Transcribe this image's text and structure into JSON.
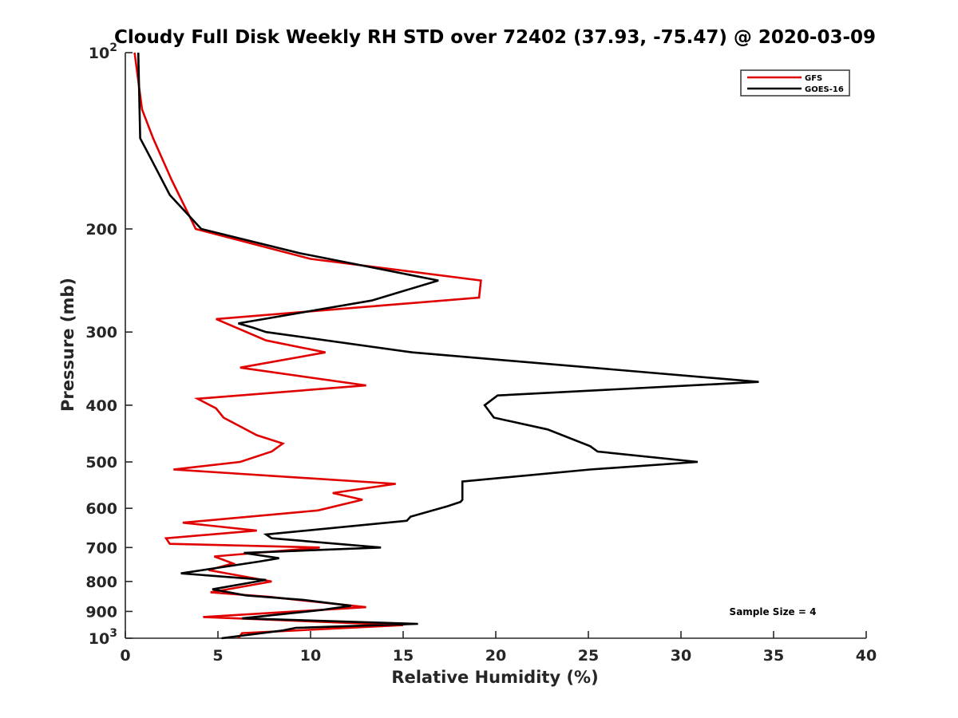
{
  "chart_data": {
    "type": "line",
    "title": "Cloudy Full Disk Weekly RH STD over 72402 (37.93, -75.47) @ 2020-03-09",
    "xlabel": "Relative Humidity (%)",
    "ylabel": "Pressure (mb)",
    "xlim": [
      0,
      40
    ],
    "ylim": [
      100,
      1000
    ],
    "y_scale": "log",
    "y_reversed": true,
    "grid": false,
    "legend_position": "top-right",
    "x_ticks": [
      "0",
      "5",
      "10",
      "15",
      "20",
      "25",
      "30",
      "35",
      "40"
    ],
    "y_ticks": [
      {
        "value": 100,
        "base": "10",
        "exp": "2"
      },
      {
        "value": 200,
        "label": "200"
      },
      {
        "value": 300,
        "label": "300"
      },
      {
        "value": 400,
        "label": "400"
      },
      {
        "value": 500,
        "label": "500"
      },
      {
        "value": 600,
        "label": "600"
      },
      {
        "value": 700,
        "label": "700"
      },
      {
        "value": 800,
        "label": "800"
      },
      {
        "value": 900,
        "label": "900"
      },
      {
        "value": 1000,
        "base": "10",
        "exp": "3"
      }
    ],
    "annotation": "Sample Size = 4",
    "series": [
      {
        "name": "GFS",
        "color": "#e00000",
        "points": [
          [
            0.5,
            100
          ],
          [
            0.9,
            125
          ],
          [
            1.5,
            140
          ],
          [
            2.5,
            165
          ],
          [
            3.8,
            200
          ],
          [
            10.0,
            225
          ],
          [
            19.2,
            245
          ],
          [
            19.1,
            262
          ],
          [
            4.9,
            285
          ],
          [
            7.6,
            310
          ],
          [
            10.8,
            325
          ],
          [
            6.2,
            345
          ],
          [
            13.0,
            370
          ],
          [
            3.9,
            390
          ],
          [
            4.9,
            405
          ],
          [
            5.3,
            420
          ],
          [
            7.1,
            450
          ],
          [
            8.5,
            465
          ],
          [
            7.9,
            480
          ],
          [
            6.2,
            500
          ],
          [
            2.6,
            515
          ],
          [
            14.6,
            545
          ],
          [
            11.2,
            565
          ],
          [
            12.8,
            580
          ],
          [
            10.4,
            605
          ],
          [
            3.1,
            635
          ],
          [
            7.1,
            655
          ],
          [
            2.2,
            675
          ],
          [
            2.4,
            690
          ],
          [
            10.5,
            700
          ],
          [
            4.8,
            725
          ],
          [
            5.8,
            745
          ],
          [
            4.5,
            765
          ],
          [
            7.9,
            800
          ],
          [
            4.6,
            835
          ],
          [
            7.8,
            850
          ],
          [
            13.0,
            885
          ],
          [
            4.2,
            920
          ],
          [
            15.0,
            950
          ],
          [
            6.3,
            980
          ],
          [
            6.1,
            1000
          ]
        ]
      },
      {
        "name": "GOES-16",
        "color": "#000000",
        "points": [
          [
            0.7,
            100
          ],
          [
            0.8,
            140
          ],
          [
            1.3,
            150
          ],
          [
            2.4,
            175
          ],
          [
            4.1,
            200
          ],
          [
            9.4,
            220
          ],
          [
            16.9,
            245
          ],
          [
            13.3,
            265
          ],
          [
            6.1,
            290
          ],
          [
            6.9,
            295
          ],
          [
            7.6,
            300
          ],
          [
            15.5,
            325
          ],
          [
            34.2,
            365
          ],
          [
            20.1,
            385
          ],
          [
            19.4,
            400
          ],
          [
            19.9,
            420
          ],
          [
            22.8,
            440
          ],
          [
            25.1,
            470
          ],
          [
            25.5,
            480
          ],
          [
            30.9,
            500
          ],
          [
            25.1,
            515
          ],
          [
            18.2,
            540
          ],
          [
            18.2,
            580
          ],
          [
            18.1,
            585
          ],
          [
            17.4,
            595
          ],
          [
            15.4,
            620
          ],
          [
            15.2,
            630
          ],
          [
            7.6,
            665
          ],
          [
            7.9,
            675
          ],
          [
            13.8,
            700
          ],
          [
            6.4,
            715
          ],
          [
            8.3,
            730
          ],
          [
            7.2,
            740
          ],
          [
            3.0,
            775
          ],
          [
            7.6,
            795
          ],
          [
            4.7,
            825
          ],
          [
            6.5,
            845
          ],
          [
            9.6,
            860
          ],
          [
            12.2,
            880
          ],
          [
            10.6,
            895
          ],
          [
            6.3,
            925
          ],
          [
            15.8,
            945
          ],
          [
            9.2,
            960
          ],
          [
            8.5,
            970
          ],
          [
            5.2,
            1000
          ]
        ]
      }
    ]
  }
}
